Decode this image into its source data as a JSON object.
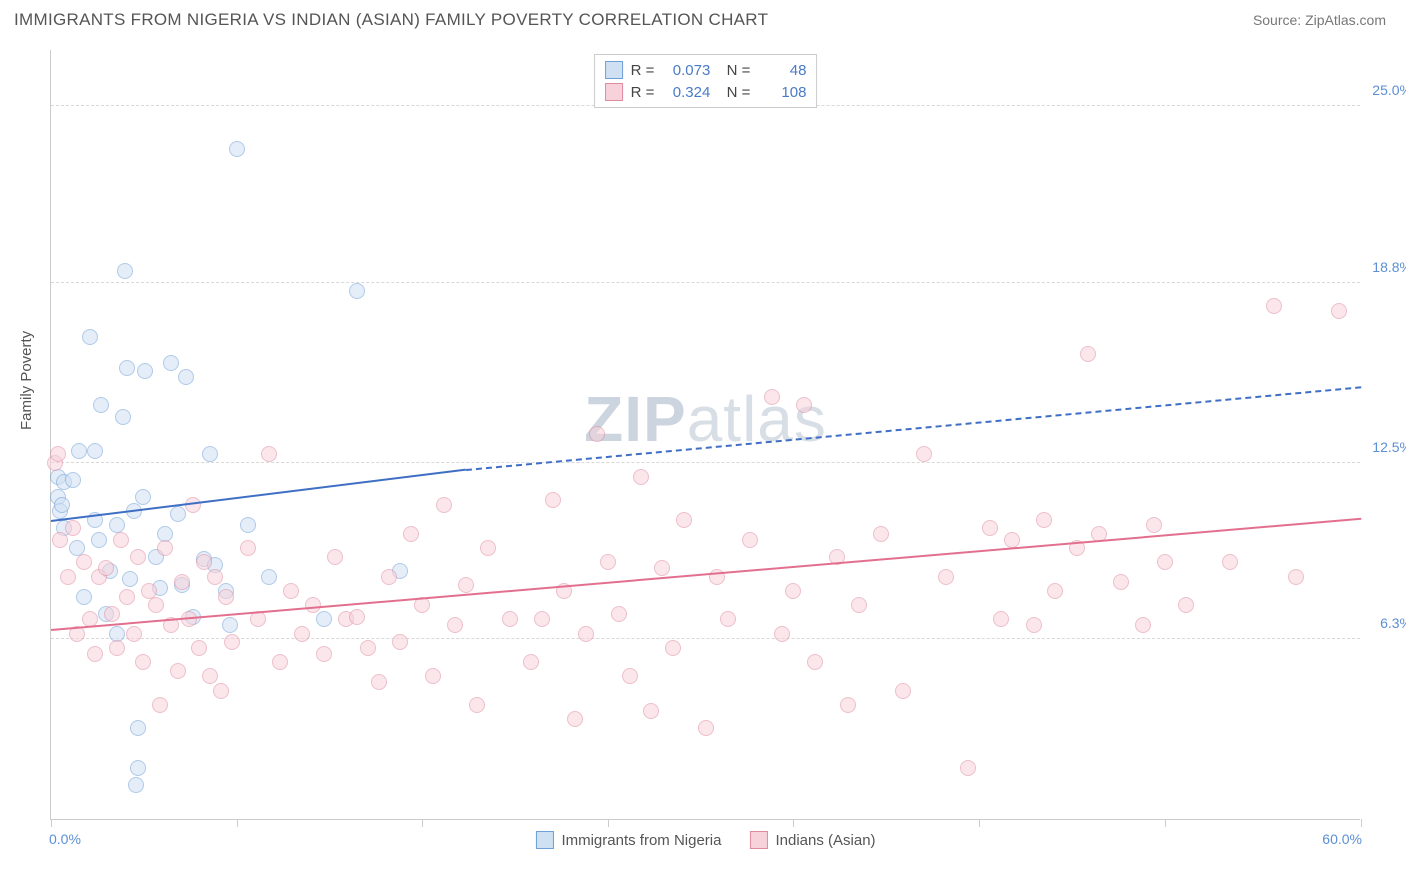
{
  "header": {
    "title": "IMMIGRANTS FROM NIGERIA VS INDIAN (ASIAN) FAMILY POVERTY CORRELATION CHART",
    "source_label": "Source:",
    "source_name": "ZipAtlas.com"
  },
  "chart": {
    "type": "scatter",
    "y_axis_label": "Family Poverty",
    "x_min": 0.0,
    "x_max": 60.0,
    "x_min_label": "0.0%",
    "x_max_label": "60.0%",
    "y_min": 0.0,
    "y_max": 27.0,
    "y_ticks": [
      {
        "value": 6.3,
        "label": "6.3%"
      },
      {
        "value": 12.5,
        "label": "12.5%"
      },
      {
        "value": 18.8,
        "label": "18.8%"
      },
      {
        "value": 25.0,
        "label": "25.0%"
      }
    ],
    "x_tick_values": [
      0,
      8.5,
      17,
      25.5,
      34,
      42.5,
      51,
      60
    ],
    "grid_color": "#d8d8d8",
    "background_color": "#ffffff",
    "axis_color": "#cccccc",
    "tick_label_color": "#5b8fd6",
    "point_radius": 8,
    "point_border_width": 1.5,
    "series": [
      {
        "id": "nigeria",
        "label": "Immigrants from Nigeria",
        "fill": "#cfe0f3",
        "stroke": "#6f9fd8",
        "fill_opacity": 0.55,
        "r_value": "0.073",
        "n_value": "48",
        "trend": {
          "x1": 0.0,
          "y1": 10.4,
          "x2_solid": 19.0,
          "y2_solid": 12.2,
          "x2_dashed": 60.0,
          "y2_dashed": 15.1,
          "color": "#3f6fc4"
        },
        "points": [
          [
            0.3,
            11.3
          ],
          [
            0.3,
            12.0
          ],
          [
            0.4,
            10.8
          ],
          [
            0.5,
            11.0
          ],
          [
            0.6,
            10.2
          ],
          [
            0.6,
            11.8
          ],
          [
            1.0,
            11.9
          ],
          [
            1.2,
            9.5
          ],
          [
            1.3,
            12.9
          ],
          [
            1.5,
            7.8
          ],
          [
            1.8,
            16.9
          ],
          [
            2.0,
            10.5
          ],
          [
            2.0,
            12.9
          ],
          [
            2.2,
            9.8
          ],
          [
            2.3,
            14.5
          ],
          [
            2.5,
            7.2
          ],
          [
            2.7,
            8.7
          ],
          [
            3.0,
            10.3
          ],
          [
            3.0,
            6.5
          ],
          [
            3.3,
            14.1
          ],
          [
            3.4,
            19.2
          ],
          [
            3.5,
            15.8
          ],
          [
            3.6,
            8.4
          ],
          [
            3.8,
            10.8
          ],
          [
            3.9,
            1.2
          ],
          [
            4.0,
            1.8
          ],
          [
            4.0,
            3.2
          ],
          [
            4.2,
            11.3
          ],
          [
            4.3,
            15.7
          ],
          [
            4.8,
            9.2
          ],
          [
            5.0,
            8.1
          ],
          [
            5.2,
            10.0
          ],
          [
            5.5,
            16.0
          ],
          [
            5.8,
            10.7
          ],
          [
            6.0,
            8.2
          ],
          [
            6.2,
            15.5
          ],
          [
            6.5,
            7.1
          ],
          [
            7.0,
            9.1
          ],
          [
            7.3,
            12.8
          ],
          [
            7.5,
            8.9
          ],
          [
            8.0,
            8.0
          ],
          [
            8.2,
            6.8
          ],
          [
            8.5,
            23.5
          ],
          [
            9.0,
            10.3
          ],
          [
            10.0,
            8.5
          ],
          [
            12.5,
            7.0
          ],
          [
            14.0,
            18.5
          ],
          [
            16.0,
            8.7
          ]
        ]
      },
      {
        "id": "indian",
        "label": "Indians (Asian)",
        "fill": "#f7d2db",
        "stroke": "#e08ca0",
        "fill_opacity": 0.55,
        "r_value": "0.324",
        "n_value": "108",
        "trend": {
          "x1": 0.0,
          "y1": 6.6,
          "x2_solid": 60.0,
          "y2_solid": 10.5,
          "x2_dashed": 60.0,
          "y2_dashed": 10.5,
          "color": "#e36f8e"
        },
        "points": [
          [
            0.2,
            12.5
          ],
          [
            0.3,
            12.8
          ],
          [
            0.4,
            9.8
          ],
          [
            0.8,
            8.5
          ],
          [
            1.0,
            10.2
          ],
          [
            1.2,
            6.5
          ],
          [
            1.5,
            9.0
          ],
          [
            1.8,
            7.0
          ],
          [
            2.0,
            5.8
          ],
          [
            2.2,
            8.5
          ],
          [
            2.5,
            8.8
          ],
          [
            2.8,
            7.2
          ],
          [
            3.0,
            6.0
          ],
          [
            3.2,
            9.8
          ],
          [
            3.5,
            7.8
          ],
          [
            3.8,
            6.5
          ],
          [
            4.0,
            9.2
          ],
          [
            4.2,
            5.5
          ],
          [
            4.5,
            8.0
          ],
          [
            4.8,
            7.5
          ],
          [
            5.0,
            4.0
          ],
          [
            5.2,
            9.5
          ],
          [
            5.5,
            6.8
          ],
          [
            5.8,
            5.2
          ],
          [
            6.0,
            8.3
          ],
          [
            6.3,
            7.0
          ],
          [
            6.5,
            11.0
          ],
          [
            6.8,
            6.0
          ],
          [
            7.0,
            9.0
          ],
          [
            7.3,
            5.0
          ],
          [
            7.5,
            8.5
          ],
          [
            7.8,
            4.5
          ],
          [
            8.0,
            7.8
          ],
          [
            8.3,
            6.2
          ],
          [
            9.0,
            9.5
          ],
          [
            9.5,
            7.0
          ],
          [
            10.0,
            12.8
          ],
          [
            10.5,
            5.5
          ],
          [
            11.0,
            8.0
          ],
          [
            11.5,
            6.5
          ],
          [
            12.0,
            7.5
          ],
          [
            12.5,
            5.8
          ],
          [
            13.0,
            9.2
          ],
          [
            13.5,
            7.0
          ],
          [
            14.0,
            7.1
          ],
          [
            14.5,
            6.0
          ],
          [
            15.0,
            4.8
          ],
          [
            15.5,
            8.5
          ],
          [
            16.0,
            6.2
          ],
          [
            16.5,
            10.0
          ],
          [
            17.0,
            7.5
          ],
          [
            17.5,
            5.0
          ],
          [
            18.0,
            11.0
          ],
          [
            18.5,
            6.8
          ],
          [
            19.0,
            8.2
          ],
          [
            19.5,
            4.0
          ],
          [
            20.0,
            9.5
          ],
          [
            21.0,
            7.0
          ],
          [
            22.0,
            5.5
          ],
          [
            22.5,
            7.0
          ],
          [
            23.0,
            11.2
          ],
          [
            23.5,
            8.0
          ],
          [
            24.0,
            3.5
          ],
          [
            24.5,
            6.5
          ],
          [
            25.0,
            13.5
          ],
          [
            25.5,
            9.0
          ],
          [
            26.0,
            7.2
          ],
          [
            26.5,
            5.0
          ],
          [
            27.0,
            12.0
          ],
          [
            27.5,
            3.8
          ],
          [
            28.0,
            8.8
          ],
          [
            28.5,
            6.0
          ],
          [
            29.0,
            10.5
          ],
          [
            30.0,
            3.2
          ],
          [
            30.5,
            8.5
          ],
          [
            31.0,
            7.0
          ],
          [
            32.0,
            9.8
          ],
          [
            33.0,
            14.8
          ],
          [
            33.5,
            6.5
          ],
          [
            34.0,
            8.0
          ],
          [
            34.5,
            14.5
          ],
          [
            35.0,
            5.5
          ],
          [
            36.0,
            9.2
          ],
          [
            36.5,
            4.0
          ],
          [
            37.0,
            7.5
          ],
          [
            38.0,
            10.0
          ],
          [
            39.0,
            4.5
          ],
          [
            40.0,
            12.8
          ],
          [
            41.0,
            8.5
          ],
          [
            42.0,
            1.8
          ],
          [
            43.0,
            10.2
          ],
          [
            43.5,
            7.0
          ],
          [
            44.0,
            9.8
          ],
          [
            45.0,
            6.8
          ],
          [
            45.5,
            10.5
          ],
          [
            46.0,
            8.0
          ],
          [
            47.0,
            9.5
          ],
          [
            47.5,
            16.3
          ],
          [
            48.0,
            10.0
          ],
          [
            49.0,
            8.3
          ],
          [
            50.0,
            6.8
          ],
          [
            50.5,
            10.3
          ],
          [
            51.0,
            9.0
          ],
          [
            52.0,
            7.5
          ],
          [
            54.0,
            9.0
          ],
          [
            56.0,
            18.0
          ],
          [
            57.0,
            8.5
          ],
          [
            59.0,
            17.8
          ]
        ]
      }
    ],
    "legend_top": {
      "r_label": "R =",
      "n_label": "N ="
    },
    "watermark": {
      "part1": "ZIP",
      "part2": "atlas"
    }
  }
}
